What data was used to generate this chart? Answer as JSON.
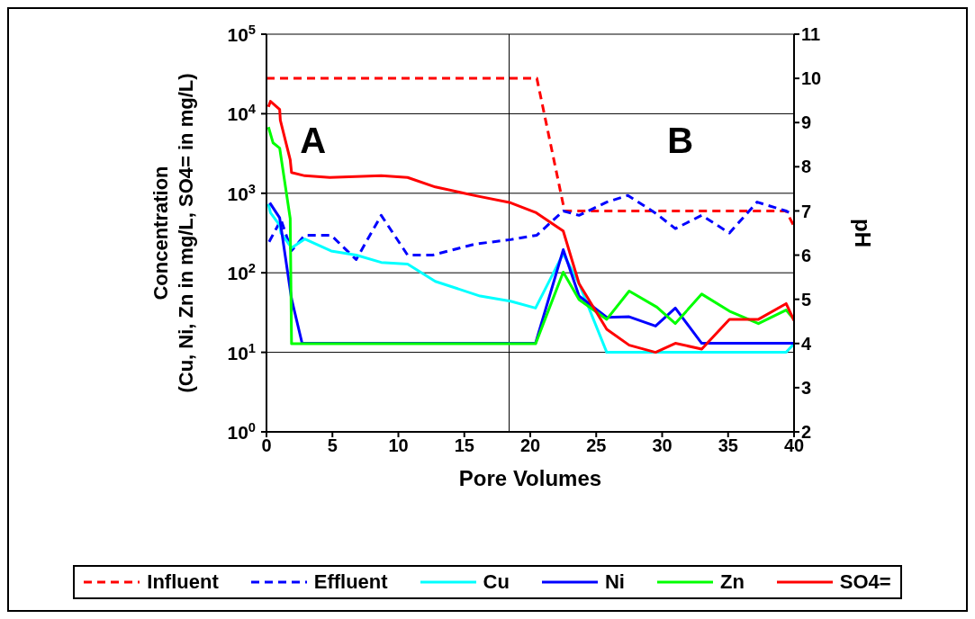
{
  "chart_data": {
    "type": "line",
    "xlabel": "Pore Volumes",
    "ylabel": "Concentration\n(Cu, Ni, Zn in  mg/L, SO4= in mg/L)",
    "y2label": "pH",
    "xlim": [
      0,
      40
    ],
    "xticks": [
      0,
      5,
      10,
      15,
      20,
      25,
      30,
      35,
      40
    ],
    "ylim": [
      1,
      100000
    ],
    "yticks": [
      {
        "value": 1,
        "label": "10$^{0}$"
      },
      {
        "value": 10,
        "label": "10$^{1}$"
      },
      {
        "value": 100,
        "label": "10$^{2}$"
      },
      {
        "value": 1000,
        "label": "10$^{3}$"
      },
      {
        "value": 10000,
        "label": "10$^{4}$"
      },
      {
        "value": 100000,
        "label": "10$^{5}$"
      }
    ],
    "log": "y",
    "y2lim": [
      2,
      11
    ],
    "y2ticks": [
      2,
      3,
      4,
      5,
      6,
      7,
      8,
      9,
      10,
      11
    ],
    "grid": "y",
    "legend": "bottom",
    "marker": "none",
    "ref_lines": [
      {
        "axis": "x",
        "value": 18.4,
        "color": "#000000"
      }
    ],
    "annotations": [
      "A",
      "B"
    ],
    "series": [
      {
        "name": "Influent",
        "color": "#ff0000",
        "axis": "y2",
        "line_style": "dashed",
        "x": [
          0,
          20.5,
          22.6,
          39.4,
          40
        ],
        "values": [
          10,
          10,
          7,
          7,
          6.65
        ]
      },
      {
        "name": "Effluent",
        "color": "#0000ff",
        "axis": "y2",
        "line_style": "dashed",
        "x": [
          0.2,
          1.1,
          1.9,
          2.9,
          4.9,
          6.8,
          8.7,
          10.7,
          12.6,
          15.8,
          18.5,
          20.5,
          22.5,
          23.7,
          25.8,
          27.4,
          29.5,
          31,
          33,
          35.1,
          37.2,
          39.4,
          40
        ],
        "values": [
          6.3,
          6.8,
          6.1,
          6.45,
          6.45,
          5.9,
          6.9,
          6.0,
          6.0,
          6.25,
          6.35,
          6.45,
          7.0,
          6.9,
          7.2,
          7.35,
          6.95,
          6.6,
          6.9,
          6.5,
          7.2,
          7.0,
          6.9
        ]
      },
      {
        "name": "Cu",
        "color": "#00ffff",
        "line_style": "solid",
        "x": [
          0.15,
          0.3,
          1.0,
          1.1,
          1.9,
          2.9,
          4.9,
          6.8,
          8.7,
          10.7,
          12.8,
          16.2,
          18.5,
          20.4,
          22.5,
          23.7,
          25.8,
          39.4,
          40
        ],
        "values": [
          735,
          570,
          395,
          315,
          206,
          266,
          188,
          167,
          135,
          129,
          78,
          51,
          44,
          36,
          174,
          73,
          10,
          10,
          12.8
        ]
      },
      {
        "name": "Ni",
        "color": "#0000ff",
        "line_style": "solid",
        "x": [
          0.25,
          1.0,
          1.9,
          2.7,
          20.4,
          22.5,
          23.7,
          25.8,
          27.5,
          29.5,
          31,
          33,
          40
        ],
        "values": [
          760,
          490,
          47,
          13,
          13,
          195,
          51,
          27.5,
          28,
          21.4,
          36,
          13,
          13
        ]
      },
      {
        "name": "Zn",
        "color": "#00ff00",
        "line_style": "solid",
        "x": [
          0.15,
          0.5,
          1.0,
          1.8,
          1.9,
          20.4,
          22.5,
          23.7,
          25.8,
          27.5,
          29.6,
          31,
          33,
          35.1,
          37.3,
          39.4,
          40
        ],
        "values": [
          6800,
          4300,
          3700,
          480,
          12.8,
          12.8,
          102,
          46,
          26,
          59,
          37,
          23,
          54,
          33,
          23,
          34,
          26
        ]
      },
      {
        "name": "SO4=",
        "color": "#ff0000",
        "line_style": "solid",
        "x": [
          0.15,
          0.3,
          1.0,
          1.05,
          1.8,
          1.9,
          2.9,
          4.8,
          8.7,
          10.7,
          12.8,
          15.8,
          18.5,
          20.4,
          22.5,
          23.7,
          25.8,
          27.5,
          29.5,
          31,
          33,
          35.1,
          37.3,
          39.4,
          40
        ],
        "values": [
          12200,
          14300,
          11300,
          8300,
          2630,
          1820,
          1660,
          1580,
          1660,
          1580,
          1200,
          935,
          760,
          575,
          335,
          73,
          19.5,
          12.3,
          10,
          13,
          11,
          26,
          26,
          41,
          25
        ]
      }
    ]
  }
}
